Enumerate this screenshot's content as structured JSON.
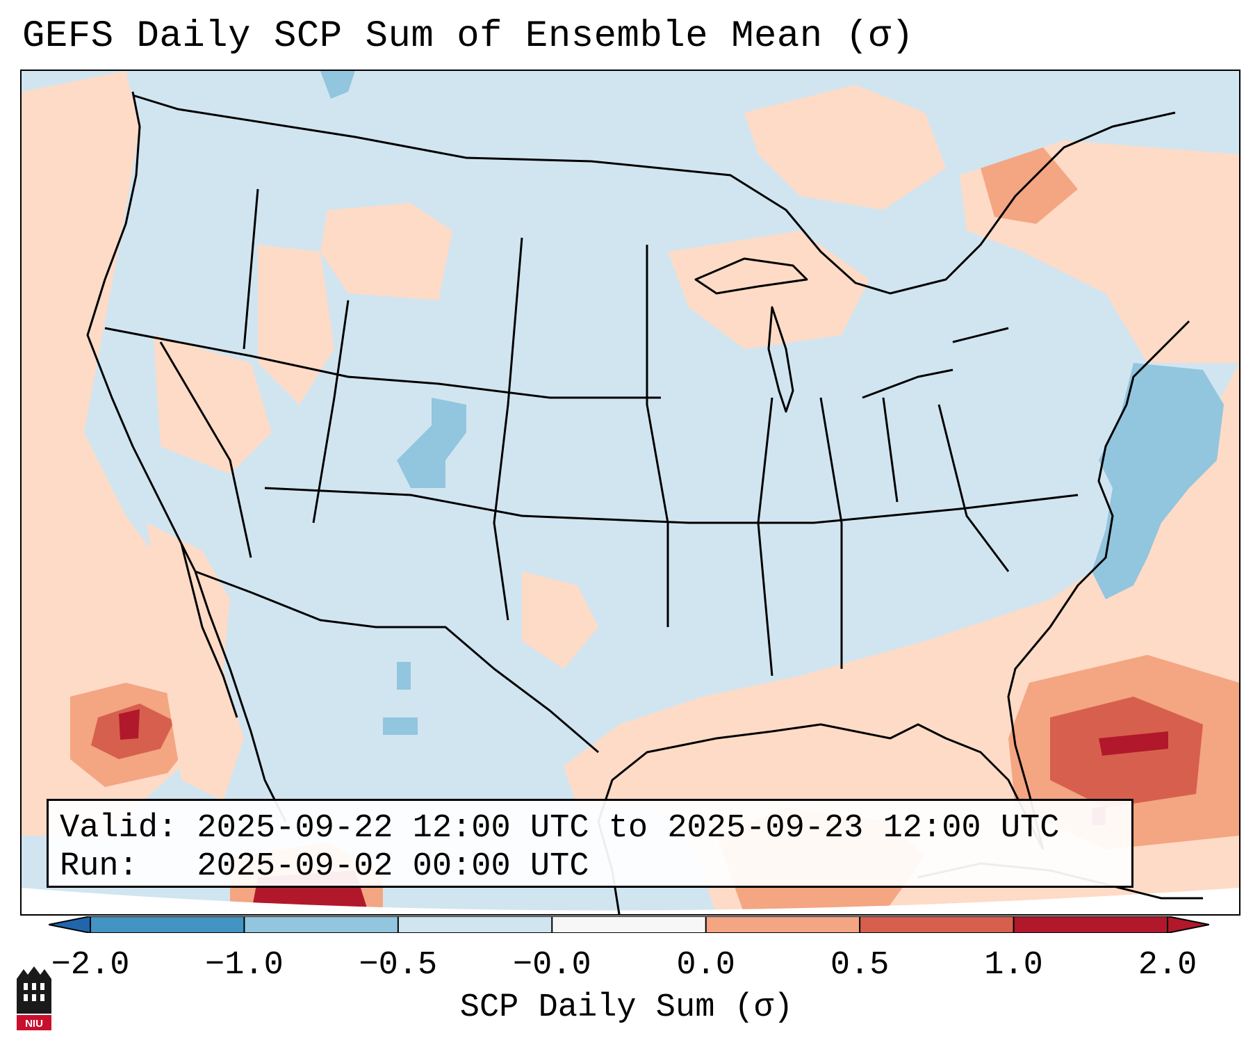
{
  "title": "GEFS Daily SCP Sum of Ensemble Mean (σ)",
  "valid_line": "Valid: 2025-09-22 12:00 UTC to 2025-09-23 12:00 UTC",
  "run_line": "Run:   2025-09-02 00:00 UTC",
  "colorbar": {
    "label": "SCP Daily Sum (σ)",
    "ticks": [
      "−2.0",
      "−1.0",
      "−0.5",
      "−0.0",
      "0.0",
      "0.5",
      "1.0",
      "2.0"
    ],
    "colors": [
      "#4393c3",
      "#92c5de",
      "#d1e5f0",
      "#f7f7f7",
      "#fddbc7",
      "#f4a582",
      "#d6604d",
      "#b2182b"
    ],
    "extend_low_color": "#2166ac",
    "extend_high_color": "#b2182b"
  },
  "logo_text": "NIU",
  "map_colors": {
    "land_base": "#d1e5f0",
    "ocean_pos": "#fddbc7",
    "pos_mid": "#f4a582",
    "pos_high": "#d6604d",
    "pos_max": "#b2182b",
    "neg": "#92c5de",
    "outside": "#ffffff"
  }
}
